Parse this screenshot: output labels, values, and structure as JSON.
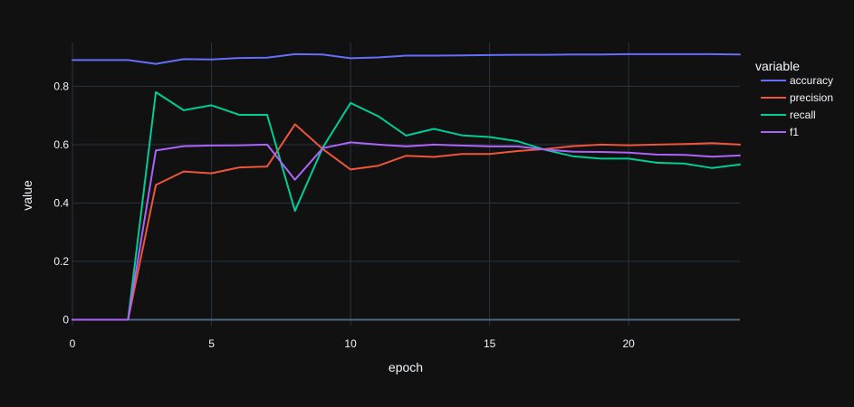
{
  "chart_data": {
    "type": "line",
    "title": "",
    "xlabel": "epoch",
    "ylabel": "value",
    "legend_title": "variable",
    "legend_position": "top-right",
    "grid": true,
    "background": "#111111",
    "xlim": [
      0,
      24
    ],
    "ylim": [
      -0.02,
      0.95
    ],
    "x_ticks": [
      0,
      5,
      10,
      15,
      20
    ],
    "y_ticks": [
      0,
      0.2,
      0.4,
      0.6,
      0.8
    ],
    "y_tick_labels": [
      "0",
      "0.2",
      "0.4",
      "0.6",
      "0.8"
    ],
    "x": [
      0,
      1,
      2,
      3,
      4,
      5,
      6,
      7,
      8,
      9,
      10,
      11,
      12,
      13,
      14,
      15,
      16,
      17,
      18,
      19,
      20,
      21,
      22,
      23,
      24
    ],
    "series": [
      {
        "name": "accuracy",
        "color": "#636efa",
        "values": [
          0.89,
          0.89,
          0.89,
          0.877,
          0.893,
          0.892,
          0.897,
          0.898,
          0.91,
          0.909,
          0.896,
          0.899,
          0.905,
          0.905,
          0.906,
          0.907,
          0.908,
          0.908,
          0.909,
          0.909,
          0.91,
          0.91,
          0.91,
          0.91,
          0.909
        ]
      },
      {
        "name": "precision",
        "color": "#ef553b",
        "values": [
          0,
          0,
          0,
          0.462,
          0.508,
          0.502,
          0.522,
          0.525,
          0.67,
          0.585,
          0.515,
          0.528,
          0.562,
          0.558,
          0.568,
          0.568,
          0.578,
          0.585,
          0.595,
          0.6,
          0.598,
          0.6,
          0.602,
          0.605,
          0.6
        ]
      },
      {
        "name": "recall",
        "color": "#00cc96",
        "values": [
          0,
          0,
          0,
          0.78,
          0.718,
          0.735,
          0.702,
          0.702,
          0.373,
          0.59,
          0.743,
          0.697,
          0.631,
          0.654,
          0.632,
          0.626,
          0.612,
          0.582,
          0.56,
          0.552,
          0.552,
          0.538,
          0.535,
          0.52,
          0.532
        ]
      },
      {
        "name": "f1",
        "color": "#ab63fa",
        "values": [
          0,
          0,
          0,
          0.58,
          0.595,
          0.597,
          0.598,
          0.6,
          0.48,
          0.588,
          0.608,
          0.6,
          0.594,
          0.6,
          0.597,
          0.594,
          0.594,
          0.583,
          0.576,
          0.575,
          0.573,
          0.566,
          0.565,
          0.559,
          0.563
        ]
      }
    ]
  }
}
